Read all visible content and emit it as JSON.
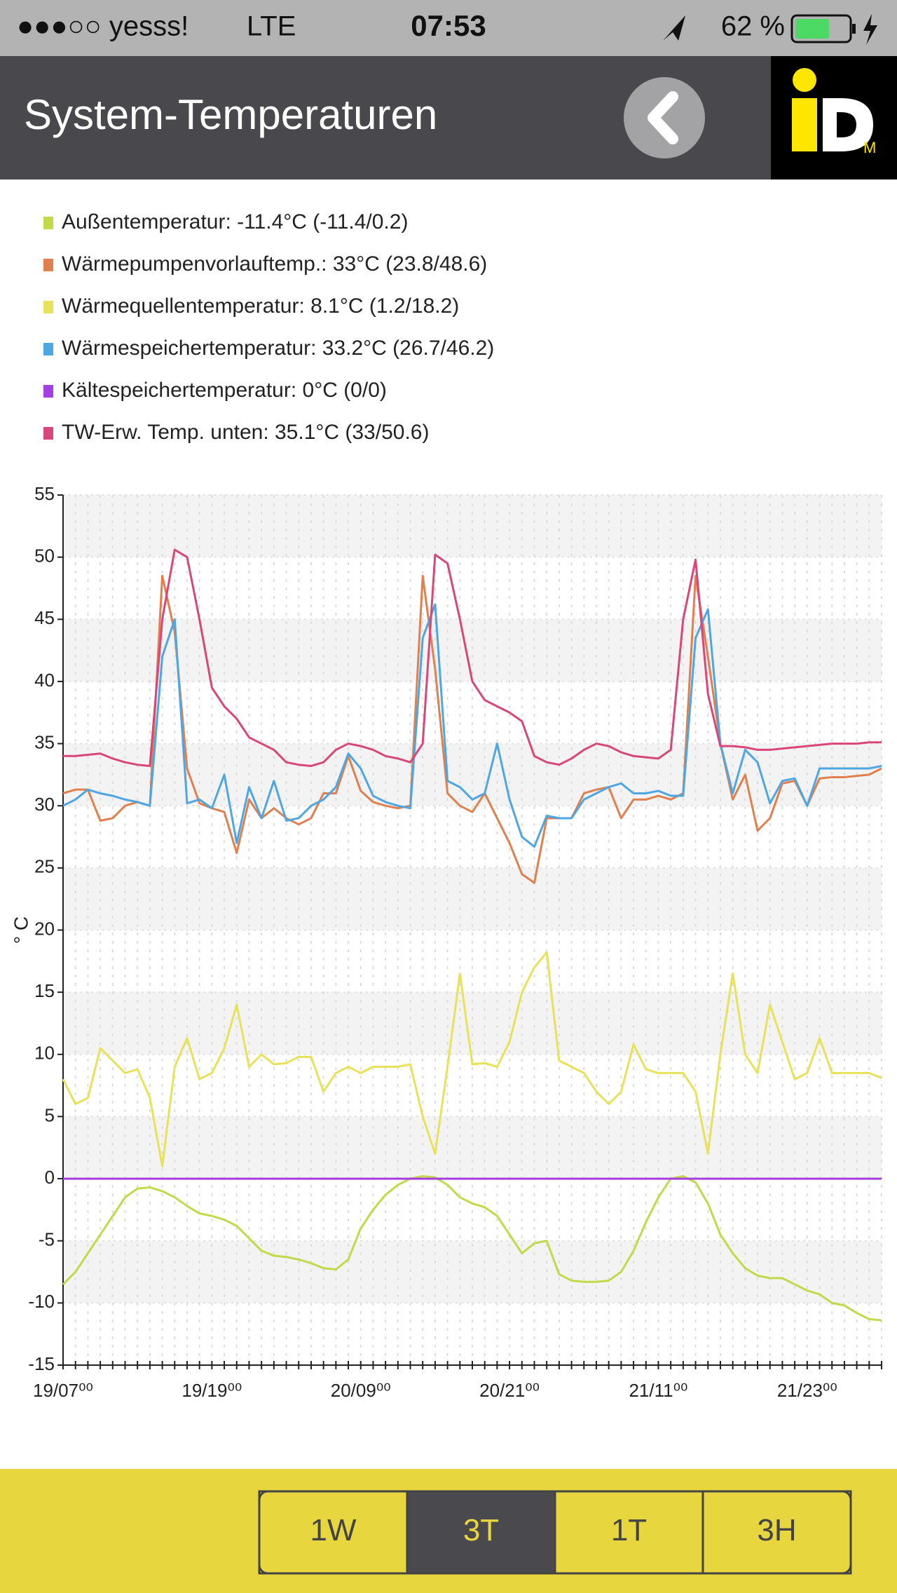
{
  "status_bar": {
    "carrier": "●●●○○ yesss!",
    "network": "LTE",
    "time": "07:53",
    "battery": "62 %"
  },
  "header": {
    "title": "System-Temperaturen"
  },
  "chart_data": {
    "type": "line",
    "ylabel": "° C",
    "ylim": [
      -15,
      55
    ],
    "yticks": [
      -15,
      -10,
      -5,
      0,
      5,
      10,
      15,
      20,
      25,
      30,
      35,
      40,
      45,
      50,
      55
    ],
    "grid": true,
    "categories": [
      "19/07⁰⁰",
      null,
      null,
      null,
      null,
      null,
      null,
      null,
      null,
      null,
      null,
      null,
      "19/19⁰⁰",
      null,
      null,
      null,
      null,
      null,
      null,
      null,
      null,
      null,
      null,
      null,
      "20/09⁰⁰",
      null,
      null,
      null,
      null,
      null,
      null,
      null,
      null,
      null,
      null,
      null,
      "20/21⁰⁰",
      null,
      null,
      null,
      null,
      null,
      null,
      null,
      null,
      null,
      null,
      null,
      "21/11⁰⁰",
      null,
      null,
      null,
      null,
      null,
      null,
      null,
      null,
      null,
      null,
      null,
      "21/23⁰⁰",
      null,
      null,
      null,
      null,
      null,
      null
    ],
    "series": [
      {
        "name": "Außentemperatur: -11.4°C (-11.4/0.2)",
        "color": "#c3d94a",
        "values": [
          -8.5,
          -7.5,
          -6,
          -4.5,
          -3,
          -1.5,
          -0.8,
          -0.7,
          -1,
          -1.5,
          -2.2,
          -2.8,
          -3,
          -3.3,
          -3.8,
          -4.8,
          -5.8,
          -6.2,
          -6.3,
          -6.5,
          -6.8,
          -7.2,
          -7.3,
          -6.5,
          -4,
          -2.5,
          -1.3,
          -0.5,
          0,
          0.2,
          0.1,
          -0.5,
          -1.5,
          -2,
          -2.3,
          -3,
          -4.5,
          -6,
          -5.2,
          -5,
          -7.7,
          -8.2,
          -8.3,
          -8.3,
          -8.2,
          -7.5,
          -5.8,
          -3.5,
          -1.5,
          0,
          0.2,
          -0.3,
          -2,
          -4.5,
          -6,
          -7.2,
          -7.8,
          -8,
          -8,
          -8.5,
          -9,
          -9.3,
          -10,
          -10.2,
          -10.8,
          -11.3,
          -11.4
        ]
      },
      {
        "name": "Wärmepumpenvorlauftemp.: 33°C (23.8/48.6)",
        "color": "#e0804e",
        "values": [
          31,
          31.3,
          31.3,
          28.8,
          29,
          30,
          30.3,
          30,
          48.5,
          44,
          33,
          30.2,
          29.8,
          29.5,
          26.2,
          30.5,
          29,
          29.8,
          29,
          28.5,
          29,
          31,
          31,
          34,
          31.2,
          30.3,
          30,
          29.8,
          30,
          48.5,
          41,
          31,
          30,
          29.5,
          31,
          29,
          27,
          24.5,
          23.8,
          29,
          29,
          29,
          31,
          31.3,
          31.5,
          29,
          30.5,
          30.5,
          30.8,
          30.5,
          31,
          48.5,
          42,
          35,
          30.5,
          32.5,
          28,
          29,
          31.8,
          32,
          30,
          32.2,
          32.3,
          32.3,
          32.4,
          32.5,
          33
        ]
      },
      {
        "name": "Wärmequellentemperatur: 8.1°C (1.2/18.2)",
        "color": "#e8e25a",
        "values": [
          8,
          6,
          6.5,
          10.5,
          9.5,
          8.5,
          8.8,
          6.5,
          1,
          9,
          11.3,
          8,
          8.5,
          10.5,
          14,
          9,
          10,
          9.2,
          9.3,
          9.8,
          9.8,
          7,
          8.5,
          9,
          8.5,
          9,
          9,
          9,
          9.2,
          5,
          2,
          9,
          16.5,
          9.2,
          9.3,
          9,
          11,
          15,
          17,
          18.2,
          9.5,
          9,
          8.5,
          7,
          6,
          7,
          10.8,
          8.8,
          8.5,
          8.5,
          8.5,
          7,
          2,
          10,
          16.5,
          10,
          8.5,
          14,
          11,
          8,
          8.5,
          11.3,
          8.5,
          8.5,
          8.5,
          8.5,
          8.1
        ]
      },
      {
        "name": "Wärmespeichertemperatur: 33.2°C (26.7/46.2)",
        "color": "#4ea6e2",
        "values": [
          30,
          30.5,
          31.3,
          31,
          30.8,
          30.5,
          30.3,
          30,
          42,
          45,
          30.2,
          30.5,
          29.8,
          32.5,
          27,
          31.5,
          29,
          32,
          28.8,
          29,
          30,
          30.5,
          31.5,
          34.2,
          33,
          30.8,
          30.3,
          30,
          29.8,
          43.5,
          46.2,
          32,
          31.5,
          30.5,
          31,
          35,
          30.5,
          27.5,
          26.7,
          29.2,
          29,
          29,
          30.5,
          31,
          31.5,
          31.8,
          31,
          31,
          31.2,
          30.8,
          30.8,
          43.5,
          45.8,
          35,
          31,
          34.5,
          33.5,
          30.2,
          32,
          32.2,
          30,
          33,
          33,
          33,
          33,
          33,
          33.2
        ]
      },
      {
        "name": "Kältespeichertemperatur: 0°C (0/0)",
        "color": "#a540e0",
        "values": [
          0,
          0,
          0,
          0,
          0,
          0,
          0,
          0,
          0,
          0,
          0,
          0,
          0,
          0,
          0,
          0,
          0,
          0,
          0,
          0,
          0,
          0,
          0,
          0,
          0,
          0,
          0,
          0,
          0,
          0,
          0,
          0,
          0,
          0,
          0,
          0,
          0,
          0,
          0,
          0,
          0,
          0,
          0,
          0,
          0,
          0,
          0,
          0,
          0,
          0,
          0,
          0,
          0,
          0,
          0,
          0,
          0,
          0,
          0,
          0,
          0,
          0,
          0,
          0,
          0,
          0,
          0
        ]
      },
      {
        "name": "TW-Erw. Temp. unten: 35.1°C (33/50.6)",
        "color": "#d9467a",
        "values": [
          34,
          34,
          34.1,
          34.2,
          33.8,
          33.5,
          33.3,
          33.2,
          45,
          50.6,
          50,
          45,
          39.5,
          38,
          37,
          35.5,
          35,
          34.5,
          33.5,
          33.3,
          33.2,
          33.5,
          34.5,
          35,
          34.8,
          34.5,
          34,
          33.8,
          33.5,
          35,
          50.2,
          49.5,
          45,
          40,
          38.5,
          38,
          37.5,
          36.8,
          34,
          33.5,
          33.3,
          33.8,
          34.5,
          35,
          34.8,
          34.3,
          34,
          33.9,
          33.8,
          34.5,
          45,
          49.8,
          39,
          34.8,
          34.8,
          34.7,
          34.5,
          34.5,
          34.6,
          34.7,
          34.8,
          34.9,
          35,
          35,
          35,
          35.1,
          35.1
        ]
      }
    ]
  },
  "buttons": [
    "1W",
    "3T",
    "1T",
    "3H"
  ],
  "active_button": 1
}
